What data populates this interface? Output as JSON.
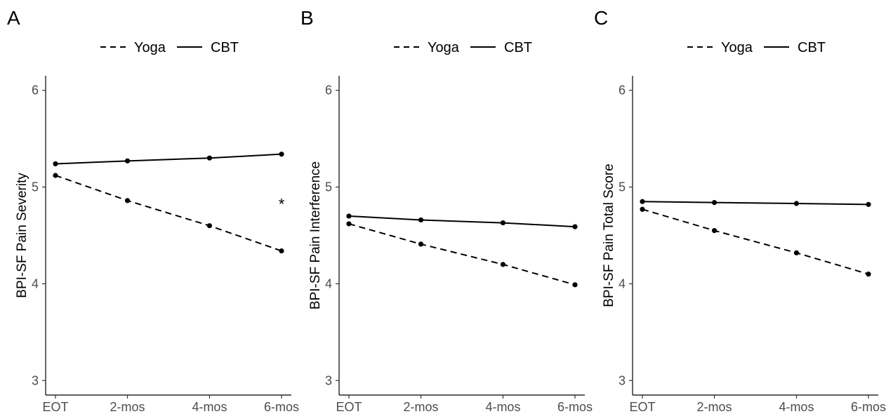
{
  "chart_data": [
    {
      "type": "line",
      "panel_label": "A",
      "ylabel": "BPI-SF Pain Severity",
      "xlabel": "",
      "categories": [
        "EOT",
        "2-mos",
        "4-mos",
        "6-mos"
      ],
      "ylim": [
        2.85,
        6.15
      ],
      "yticks": [
        3,
        4,
        5,
        6
      ],
      "grid": false,
      "legend_position": "top",
      "series": [
        {
          "name": "Yoga",
          "line_style": "dashed",
          "values": [
            5.12,
            4.86,
            4.6,
            4.34
          ]
        },
        {
          "name": "CBT",
          "line_style": "solid",
          "values": [
            5.24,
            5.27,
            5.3,
            5.34
          ]
        }
      ],
      "annotations": [
        {
          "text": "*",
          "x": "6-mos",
          "y": 4.84
        }
      ]
    },
    {
      "type": "line",
      "panel_label": "B",
      "ylabel": "BPI-SF Pain Interference",
      "xlabel": "",
      "categories": [
        "EOT",
        "2-mos",
        "4-mos",
        "6-mos"
      ],
      "ylim": [
        2.85,
        6.15
      ],
      "yticks": [
        3,
        4,
        5,
        6
      ],
      "grid": false,
      "legend_position": "top",
      "series": [
        {
          "name": "Yoga",
          "line_style": "dashed",
          "values": [
            4.62,
            4.41,
            4.2,
            3.99
          ]
        },
        {
          "name": "CBT",
          "line_style": "solid",
          "values": [
            4.7,
            4.66,
            4.63,
            4.59
          ]
        }
      ],
      "annotations": []
    },
    {
      "type": "line",
      "panel_label": "C",
      "ylabel": "BPI-SF Pain Total Score",
      "xlabel": "",
      "categories": [
        "EOT",
        "2-mos",
        "4-mos",
        "6-mos"
      ],
      "ylim": [
        2.85,
        6.15
      ],
      "yticks": [
        3,
        4,
        5,
        6
      ],
      "grid": false,
      "legend_position": "top",
      "series": [
        {
          "name": "Yoga",
          "line_style": "dashed",
          "values": [
            4.77,
            4.55,
            4.32,
            4.1
          ]
        },
        {
          "name": "CBT",
          "line_style": "solid",
          "values": [
            4.85,
            4.84,
            4.83,
            4.82
          ]
        }
      ],
      "annotations": []
    }
  ]
}
